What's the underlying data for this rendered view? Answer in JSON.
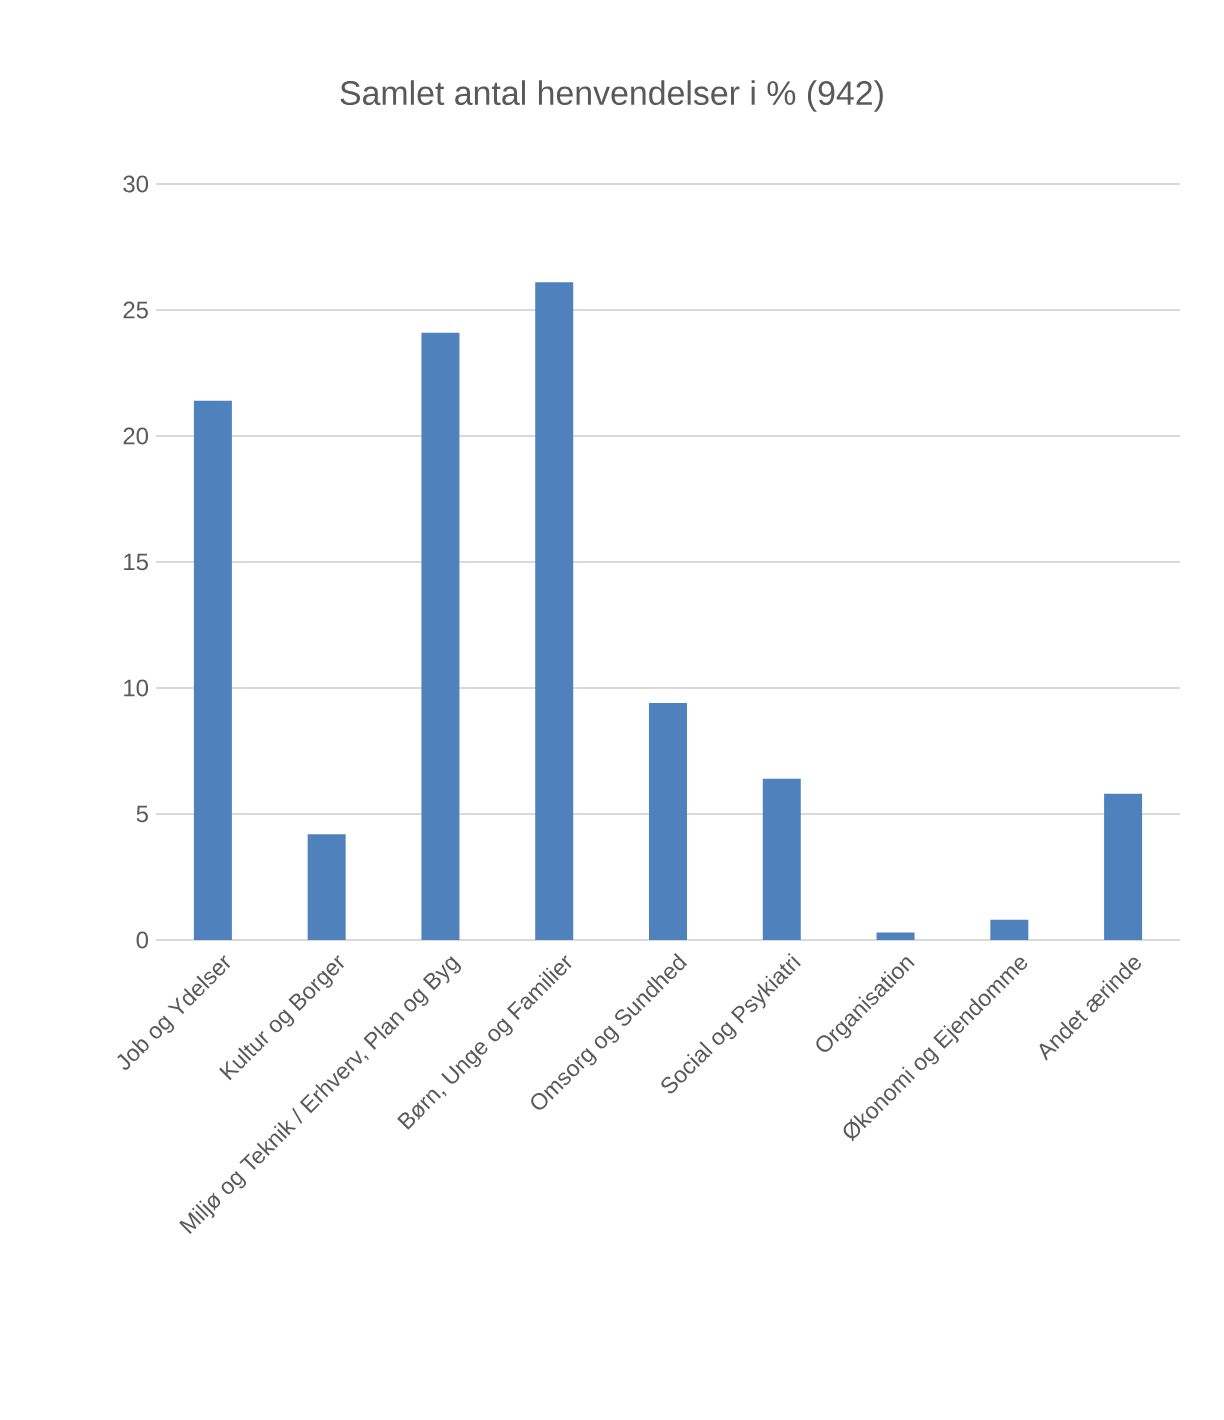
{
  "chart_data": {
    "type": "bar",
    "title": "Samlet antal henvendelser i % (942)",
    "categories": [
      "Job og Ydelser",
      "Kultur og Borger",
      "Miljø og Teknik / Erhverv, Plan og Byg",
      "Børn, Unge og Familier",
      "Omsorg og Sundhed",
      "Social og Psykiatri",
      "Organisation",
      "Økonomi og Ejendomme",
      "Andet ærinde"
    ],
    "values": [
      21.4,
      4.2,
      24.1,
      26.1,
      9.4,
      6.4,
      0.3,
      0.8,
      5.8
    ],
    "color": "#4f81bd",
    "ylim": [
      0,
      30
    ],
    "yticks": [
      0,
      5,
      10,
      15,
      20,
      25,
      30
    ],
    "grid": "y"
  }
}
